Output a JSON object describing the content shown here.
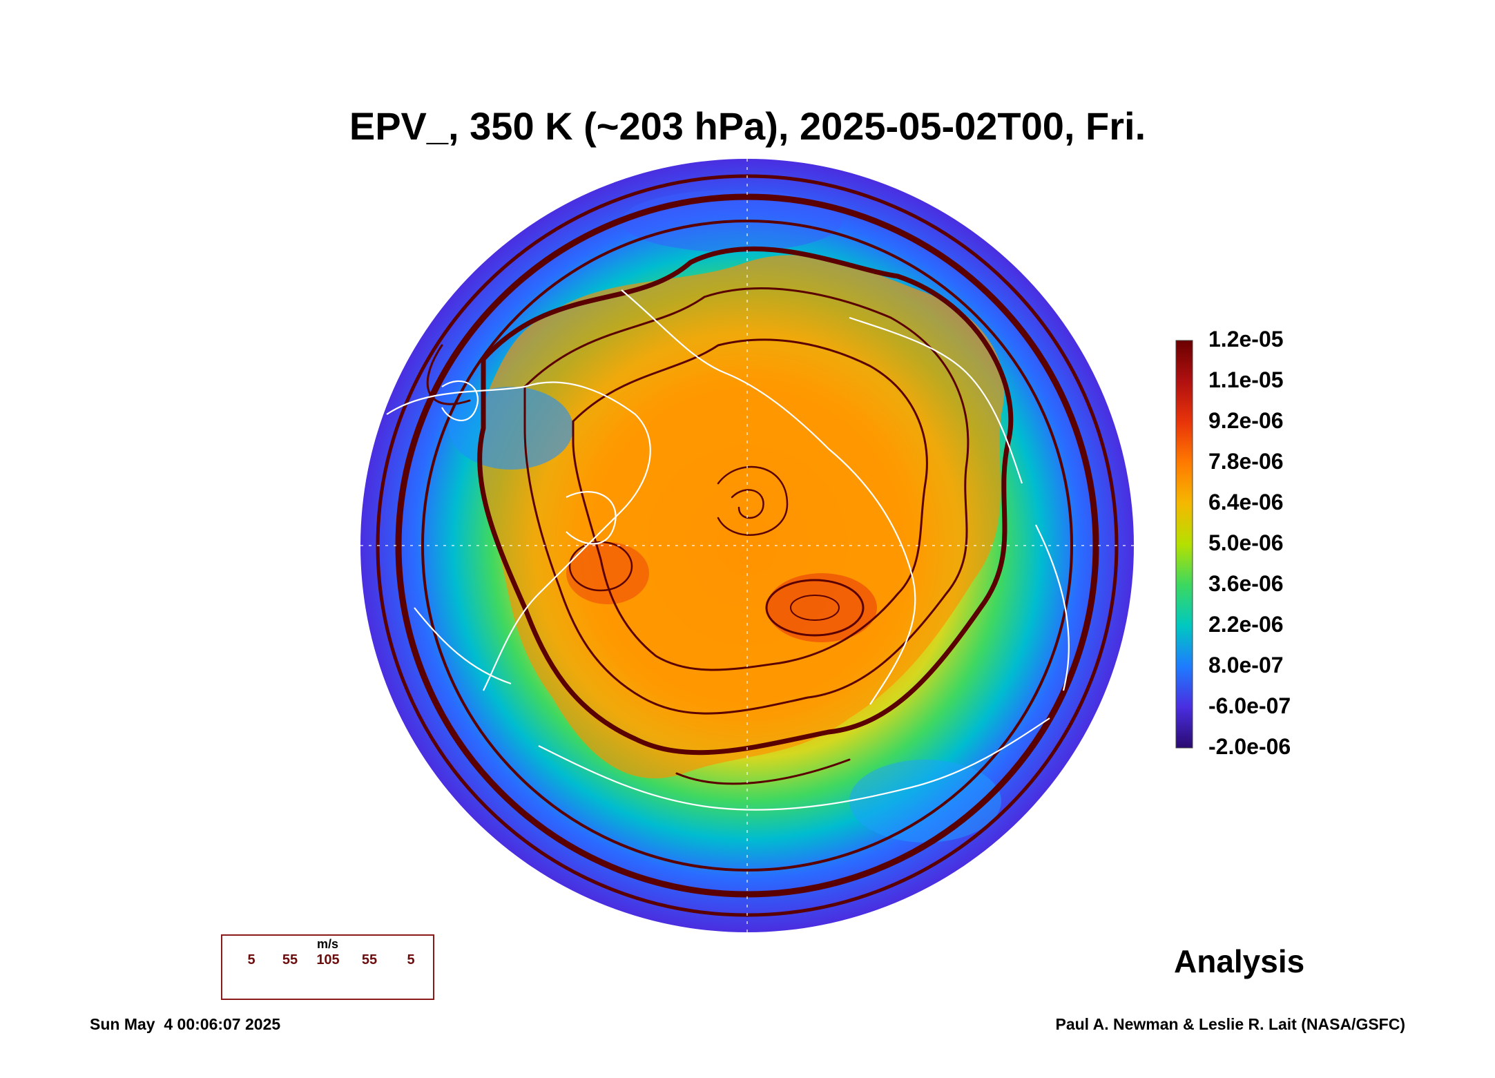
{
  "title": "EPV_, 350 K (~203 hPa), 2025-05-02T00, Fri.",
  "colorbar": {
    "ticks": [
      "1.2e-05",
      "1.1e-05",
      "9.2e-06",
      "7.8e-06",
      "6.4e-06",
      "5.0e-06",
      "3.6e-06",
      "2.2e-06",
      "8.0e-07",
      "-6.0e-07",
      "-2.0e-06"
    ],
    "colors": [
      "#6b0000",
      "#b01010",
      "#e8340a",
      "#ff7a00",
      "#f5b800",
      "#b5e000",
      "#3cd860",
      "#00c8c0",
      "#1e7cff",
      "#4a2ee0",
      "#2a0a70"
    ]
  },
  "legend": {
    "unit": "m/s",
    "values": [
      "5",
      "55",
      "105",
      "55",
      "5"
    ]
  },
  "analysis_label": "Analysis",
  "footer": {
    "timestamp": "Sun May  4 00:06:07 2025",
    "credit": "Paul A. Newman & Leslie R. Lait (NASA/GSFC)"
  }
}
